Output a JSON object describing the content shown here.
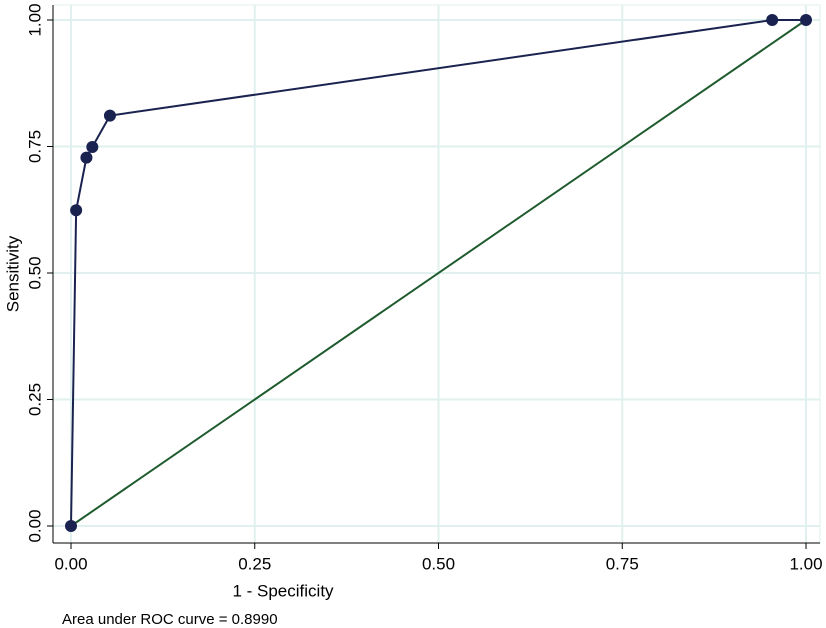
{
  "chart_data": {
    "type": "line",
    "xlabel": "1 - Specificity",
    "ylabel": "Sensitivity",
    "note": "Area under ROC curve = 0.8990",
    "x": [
      0,
      0.007,
      0.021,
      0.029,
      0.053,
      0.954,
      1
    ],
    "series": [
      {
        "color": "#1a2350",
        "values": [
          0,
          0.624,
          0.728,
          0.749,
          0.811,
          1,
          1
        ]
      }
    ],
    "reference": {
      "x": [
        0,
        1
      ],
      "values": [
        0,
        1
      ],
      "color": "#1f5b2e"
    },
    "xlim": [
      0,
      1
    ],
    "ylim": [
      0,
      1
    ],
    "xticks": [
      {
        "value": 0,
        "label": "0.00"
      },
      {
        "value": 0.25,
        "label": "0.25"
      },
      {
        "value": 0.5,
        "label": "0.50"
      },
      {
        "value": 0.75,
        "label": "0.75"
      },
      {
        "value": 1,
        "label": "1.00"
      }
    ],
    "yticks": [
      {
        "value": 0,
        "label": "0.00"
      },
      {
        "value": 0.25,
        "label": "0.25"
      },
      {
        "value": 0.5,
        "label": "0.50"
      },
      {
        "value": 0.75,
        "label": "0.75"
      },
      {
        "value": 1,
        "label": "1.00"
      }
    ],
    "grid": true
  }
}
